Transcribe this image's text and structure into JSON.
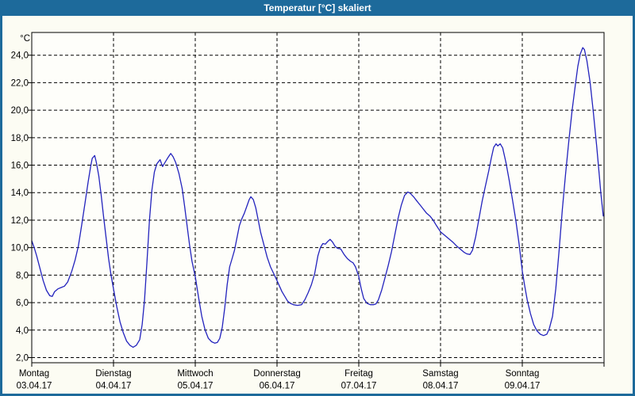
{
  "window": {
    "title": "Temperatur [°C] skaliert"
  },
  "colors": {
    "titlebar_bg": "#1d6a9b",
    "titlebar_text": "#ffffff",
    "window_border": "#1d6a9b",
    "window_bg": "#fcfcf3",
    "plot_bg": "#fefefa",
    "plot_border": "#000000",
    "grid": "#000000",
    "axis_text": "#000000",
    "line": "#2323bd"
  },
  "chart_data": {
    "type": "line",
    "title": "Temperatur [°C] skaliert",
    "y_unit_label": "°C",
    "y_axis": {
      "tick_values": [
        2,
        4,
        6,
        8,
        10,
        12,
        14,
        16,
        18,
        20,
        22,
        24
      ],
      "tick_labels": [
        "2,0",
        "4,0",
        "6,0",
        "8,0",
        "10,0",
        "12,0",
        "14,0",
        "16,0",
        "18,0",
        "20,0",
        "22,0",
        "24,0"
      ],
      "ylim": [
        1.6,
        25.7
      ],
      "grid": "dashed"
    },
    "x_axis": {
      "span_days": 7,
      "grid": "dashed",
      "days": [
        {
          "label": "Montag",
          "date": "03.04.17"
        },
        {
          "label": "Dienstag",
          "date": "04.04.17"
        },
        {
          "label": "Mittwoch",
          "date": "05.04.17"
        },
        {
          "label": "Donnerstag",
          "date": "06.04.17"
        },
        {
          "label": "Freitag",
          "date": "07.04.17"
        },
        {
          "label": "Samstag",
          "date": "08.04.17"
        },
        {
          "label": "Sonntag",
          "date": "09.04.17"
        }
      ]
    },
    "legend": null,
    "series": [
      {
        "name": "Temperatur",
        "color": "#2323bd",
        "points": [
          [
            0.0,
            10.5
          ],
          [
            0.03,
            10.0
          ],
          [
            0.06,
            9.4
          ],
          [
            0.1,
            8.5
          ],
          [
            0.14,
            7.6
          ],
          [
            0.18,
            6.9
          ],
          [
            0.22,
            6.5
          ],
          [
            0.25,
            6.45
          ],
          [
            0.28,
            6.8
          ],
          [
            0.32,
            7.0
          ],
          [
            0.36,
            7.1
          ],
          [
            0.4,
            7.2
          ],
          [
            0.44,
            7.5
          ],
          [
            0.49,
            8.3
          ],
          [
            0.53,
            9.1
          ],
          [
            0.57,
            10.1
          ],
          [
            0.61,
            11.6
          ],
          [
            0.65,
            13.2
          ],
          [
            0.69,
            14.8
          ],
          [
            0.72,
            15.9
          ],
          [
            0.74,
            16.5
          ],
          [
            0.77,
            16.7
          ],
          [
            0.79,
            16.2
          ],
          [
            0.82,
            15.2
          ],
          [
            0.85,
            13.8
          ],
          [
            0.88,
            12.2
          ],
          [
            0.91,
            10.7
          ],
          [
            0.94,
            9.2
          ],
          [
            0.97,
            8.0
          ],
          [
            1.0,
            7.0
          ],
          [
            1.04,
            5.7
          ],
          [
            1.08,
            4.6
          ],
          [
            1.12,
            3.8
          ],
          [
            1.16,
            3.2
          ],
          [
            1.2,
            2.9
          ],
          [
            1.24,
            2.75
          ],
          [
            1.28,
            2.9
          ],
          [
            1.32,
            3.3
          ],
          [
            1.35,
            4.4
          ],
          [
            1.38,
            6.2
          ],
          [
            1.41,
            9.0
          ],
          [
            1.44,
            12.0
          ],
          [
            1.47,
            14.2
          ],
          [
            1.5,
            15.5
          ],
          [
            1.53,
            16.1
          ],
          [
            1.57,
            16.4
          ],
          [
            1.6,
            15.9
          ],
          [
            1.63,
            16.2
          ],
          [
            1.66,
            16.5
          ],
          [
            1.7,
            16.85
          ],
          [
            1.73,
            16.6
          ],
          [
            1.76,
            16.2
          ],
          [
            1.8,
            15.4
          ],
          [
            1.84,
            14.3
          ],
          [
            1.87,
            13.0
          ],
          [
            1.9,
            11.6
          ],
          [
            1.93,
            10.2
          ],
          [
            1.96,
            9.0
          ],
          [
            2.0,
            7.9
          ],
          [
            2.04,
            6.4
          ],
          [
            2.08,
            5.0
          ],
          [
            2.12,
            4.0
          ],
          [
            2.16,
            3.4
          ],
          [
            2.2,
            3.15
          ],
          [
            2.24,
            3.05
          ],
          [
            2.27,
            3.1
          ],
          [
            2.3,
            3.4
          ],
          [
            2.33,
            4.2
          ],
          [
            2.36,
            5.6
          ],
          [
            2.39,
            7.3
          ],
          [
            2.42,
            8.6
          ],
          [
            2.45,
            9.2
          ],
          [
            2.48,
            9.8
          ],
          [
            2.51,
            10.7
          ],
          [
            2.54,
            11.6
          ],
          [
            2.57,
            12.1
          ],
          [
            2.6,
            12.5
          ],
          [
            2.63,
            13.0
          ],
          [
            2.66,
            13.5
          ],
          [
            2.68,
            13.7
          ],
          [
            2.71,
            13.5
          ],
          [
            2.74,
            12.9
          ],
          [
            2.77,
            12.0
          ],
          [
            2.8,
            11.1
          ],
          [
            2.84,
            10.2
          ],
          [
            2.88,
            9.3
          ],
          [
            2.92,
            8.6
          ],
          [
            2.96,
            8.1
          ],
          [
            3.0,
            7.6
          ],
          [
            3.03,
            7.2
          ],
          [
            3.06,
            6.8
          ],
          [
            3.1,
            6.4
          ],
          [
            3.13,
            6.1
          ],
          [
            3.16,
            5.95
          ],
          [
            3.2,
            5.85
          ],
          [
            3.25,
            5.8
          ],
          [
            3.3,
            5.85
          ],
          [
            3.34,
            6.2
          ],
          [
            3.38,
            6.7
          ],
          [
            3.42,
            7.3
          ],
          [
            3.46,
            8.1
          ],
          [
            3.5,
            9.4
          ],
          [
            3.53,
            10.0
          ],
          [
            3.56,
            10.3
          ],
          [
            3.59,
            10.25
          ],
          [
            3.62,
            10.45
          ],
          [
            3.65,
            10.6
          ],
          [
            3.68,
            10.4
          ],
          [
            3.71,
            10.1
          ],
          [
            3.74,
            9.95
          ],
          [
            3.78,
            9.9
          ],
          [
            3.82,
            9.5
          ],
          [
            3.86,
            9.2
          ],
          [
            3.9,
            9.0
          ],
          [
            3.93,
            8.9
          ],
          [
            3.96,
            8.6
          ],
          [
            4.0,
            7.9
          ],
          [
            4.03,
            7.0
          ],
          [
            4.06,
            6.3
          ],
          [
            4.1,
            5.95
          ],
          [
            4.14,
            5.85
          ],
          [
            4.18,
            5.85
          ],
          [
            4.21,
            5.9
          ],
          [
            4.24,
            6.2
          ],
          [
            4.28,
            6.9
          ],
          [
            4.32,
            7.8
          ],
          [
            4.36,
            8.7
          ],
          [
            4.4,
            9.7
          ],
          [
            4.44,
            10.9
          ],
          [
            4.48,
            12.1
          ],
          [
            4.52,
            13.1
          ],
          [
            4.56,
            13.8
          ],
          [
            4.6,
            14.05
          ],
          [
            4.63,
            13.95
          ],
          [
            4.67,
            13.7
          ],
          [
            4.71,
            13.4
          ],
          [
            4.75,
            13.1
          ],
          [
            4.79,
            12.8
          ],
          [
            4.83,
            12.5
          ],
          [
            4.87,
            12.3
          ],
          [
            4.91,
            12.0
          ],
          [
            4.95,
            11.6
          ],
          [
            5.0,
            11.15
          ],
          [
            5.05,
            10.9
          ],
          [
            5.1,
            10.65
          ],
          [
            5.15,
            10.4
          ],
          [
            5.2,
            10.1
          ],
          [
            5.25,
            9.85
          ],
          [
            5.29,
            9.65
          ],
          [
            5.32,
            9.55
          ],
          [
            5.36,
            9.5
          ],
          [
            5.39,
            9.8
          ],
          [
            5.43,
            10.8
          ],
          [
            5.47,
            12.1
          ],
          [
            5.51,
            13.4
          ],
          [
            5.55,
            14.5
          ],
          [
            5.59,
            15.6
          ],
          [
            5.62,
            16.5
          ],
          [
            5.65,
            17.3
          ],
          [
            5.68,
            17.55
          ],
          [
            5.7,
            17.4
          ],
          [
            5.73,
            17.55
          ],
          [
            5.76,
            17.25
          ],
          [
            5.8,
            16.2
          ],
          [
            5.84,
            14.9
          ],
          [
            5.88,
            13.5
          ],
          [
            5.92,
            12.0
          ],
          [
            5.96,
            10.3
          ],
          [
            6.0,
            8.3
          ],
          [
            6.03,
            7.2
          ],
          [
            6.06,
            6.2
          ],
          [
            6.1,
            5.2
          ],
          [
            6.14,
            4.4
          ],
          [
            6.18,
            3.95
          ],
          [
            6.22,
            3.7
          ],
          [
            6.26,
            3.6
          ],
          [
            6.3,
            3.7
          ],
          [
            6.33,
            4.1
          ],
          [
            6.37,
            5.0
          ],
          [
            6.41,
            7.0
          ],
          [
            6.45,
            9.8
          ],
          [
            6.49,
            12.8
          ],
          [
            6.53,
            15.4
          ],
          [
            6.57,
            17.8
          ],
          [
            6.61,
            20.0
          ],
          [
            6.65,
            21.9
          ],
          [
            6.68,
            23.2
          ],
          [
            6.71,
            24.1
          ],
          [
            6.74,
            24.55
          ],
          [
            6.76,
            24.4
          ],
          [
            6.79,
            23.6
          ],
          [
            6.83,
            22.0
          ],
          [
            6.87,
            19.8
          ],
          [
            6.91,
            17.4
          ],
          [
            6.94,
            15.4
          ],
          [
            6.96,
            14.0
          ],
          [
            6.99,
            12.3
          ]
        ]
      }
    ]
  }
}
